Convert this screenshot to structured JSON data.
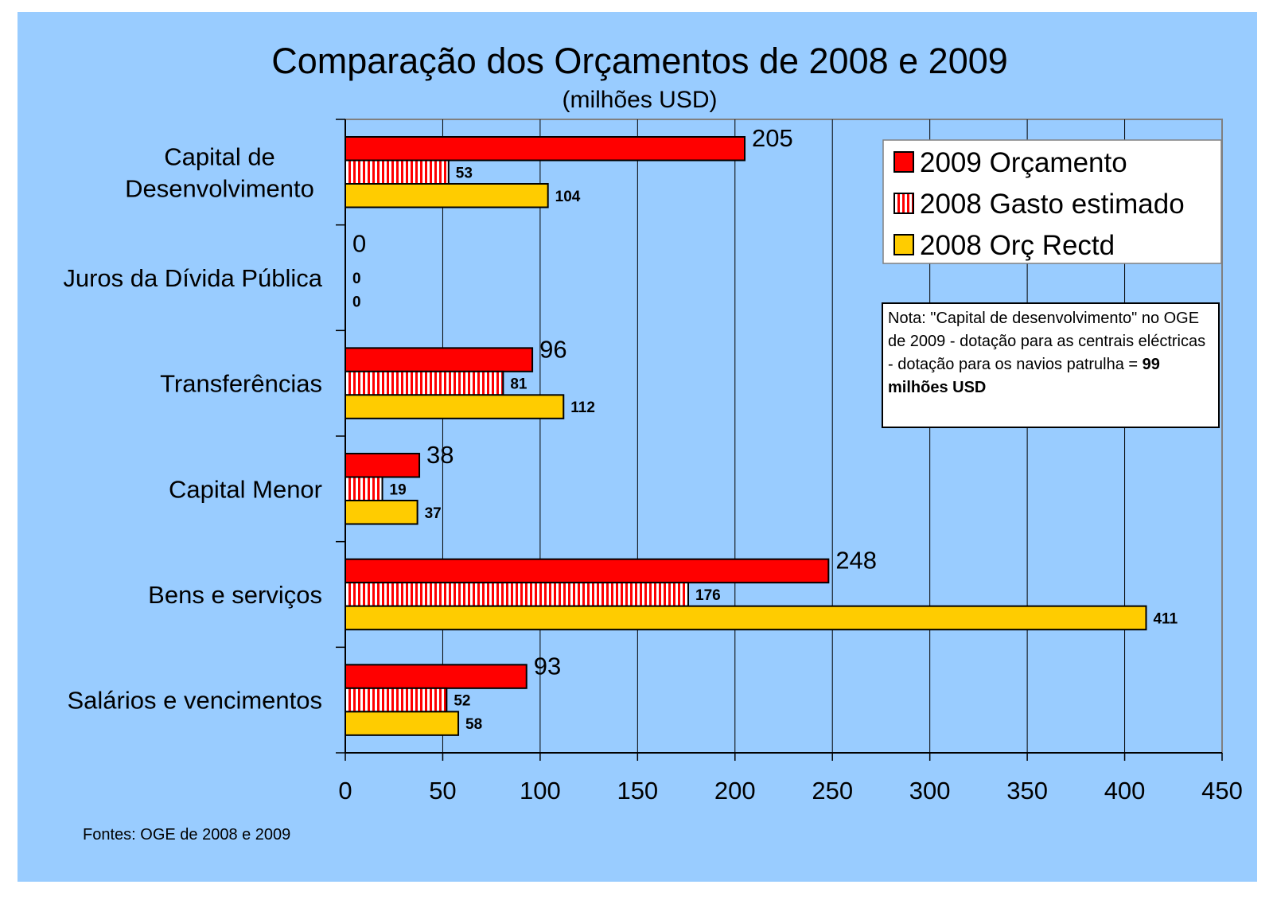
{
  "chart_data": {
    "type": "bar",
    "orientation": "horizontal",
    "title": "Comparação dos Orçamentos de 2008 e 2009",
    "subtitle": "(milhões USD)",
    "categories": [
      "Capital de|Desenvolvimento",
      "Juros da Dívida Pública",
      "Transferências",
      "Capital Menor",
      "Bens e serviços",
      "Salários e vencimentos"
    ],
    "series": [
      {
        "name": "2009 Orçamento",
        "values": [
          205,
          0,
          96,
          38,
          248,
          93
        ],
        "color": "#ff0000",
        "pattern": "solid"
      },
      {
        "name": "2008 Gasto estimado",
        "values": [
          53,
          0,
          81,
          19,
          176,
          52
        ],
        "color": "#ff0000",
        "pattern": "vertical-stripes"
      },
      {
        "name": "2008 Orç Rectd",
        "values": [
          104,
          0,
          112,
          37,
          411,
          58
        ],
        "color": "#ffcc00",
        "pattern": "solid"
      }
    ],
    "x_ticks": [
      "0",
      "50",
      "100",
      "150",
      "200",
      "250",
      "300",
      "350",
      "400",
      "450"
    ],
    "xlim": [
      0,
      450
    ],
    "grid": "vertical",
    "legend": "top-right",
    "background_color": "#99ccff"
  },
  "note": {
    "text": "Nota: \"Capital de desenvolvimento\" no OGE de 2009 - dotação para as centrais eléctricas - dotação para os navios patrulha = ",
    "bold": "99 milhões USD"
  },
  "source": "Fontes: OGE de 2008 e 2009"
}
